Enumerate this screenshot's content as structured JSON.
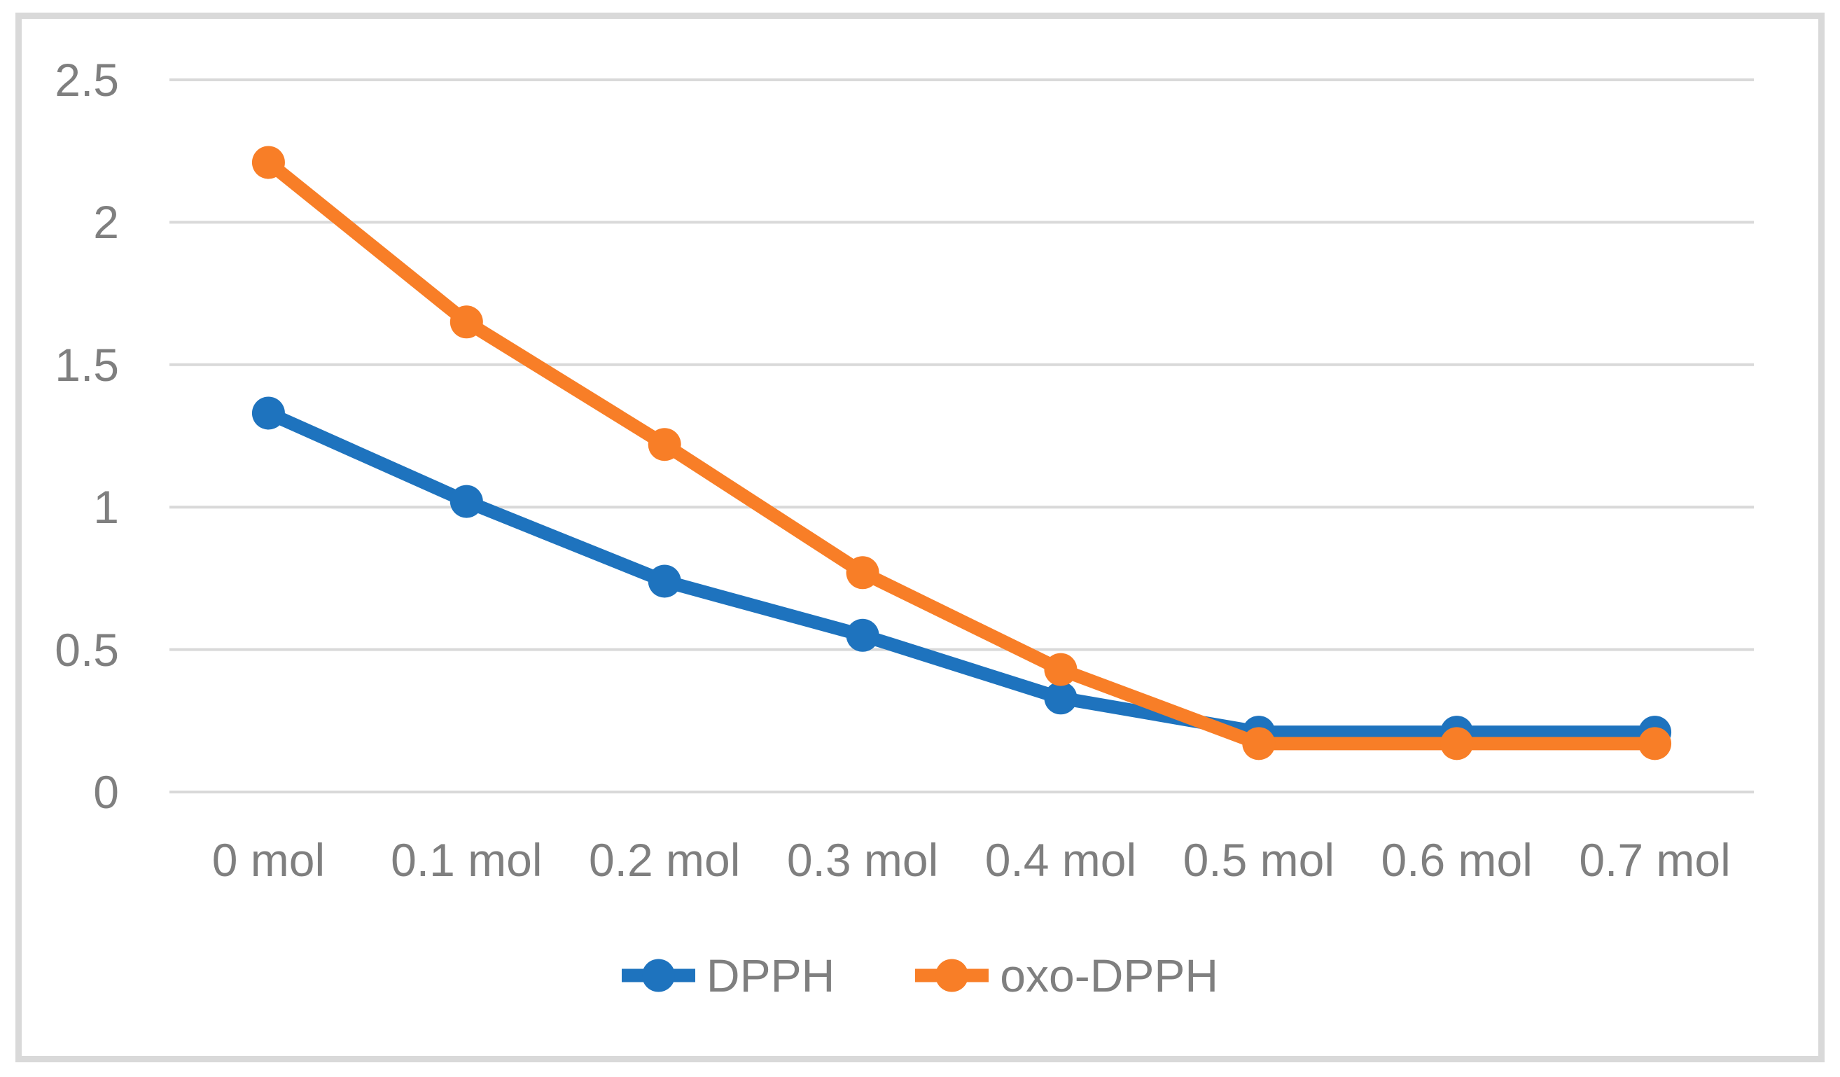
{
  "chart_data": {
    "type": "line",
    "title": "",
    "xlabel": "",
    "ylabel": "",
    "categories": [
      "0 mol",
      "0.1 mol",
      "0.2 mol",
      "0.3 mol",
      "0.4 mol",
      "0.5 mol",
      "0.6 mol",
      "0.7 mol"
    ],
    "series": [
      {
        "name": "DPPH",
        "color": "#1E73BE",
        "marker": "circle",
        "values": [
          1.33,
          1.02,
          0.74,
          0.55,
          0.33,
          0.21,
          0.21,
          0.21
        ]
      },
      {
        "name": "oxo-DPPH",
        "color": "#F87E27",
        "marker": "circle",
        "values": [
          2.21,
          1.65,
          1.22,
          0.77,
          0.43,
          0.17,
          0.17,
          0.17
        ]
      }
    ],
    "ylim": [
      0,
      2.5
    ],
    "yticks": [
      0,
      0.5,
      1,
      1.5,
      2,
      2.5
    ],
    "ytick_labels": [
      "0",
      "0.5",
      "1",
      "1.5",
      "2",
      "2.5"
    ],
    "grid": true,
    "legend_position": "bottom"
  },
  "styles": {
    "background": "#FFFFFF",
    "grid_color": "#D9D9D9",
    "frame_border_color": "#D9D9D9",
    "label_color": "#7F7F7F"
  }
}
